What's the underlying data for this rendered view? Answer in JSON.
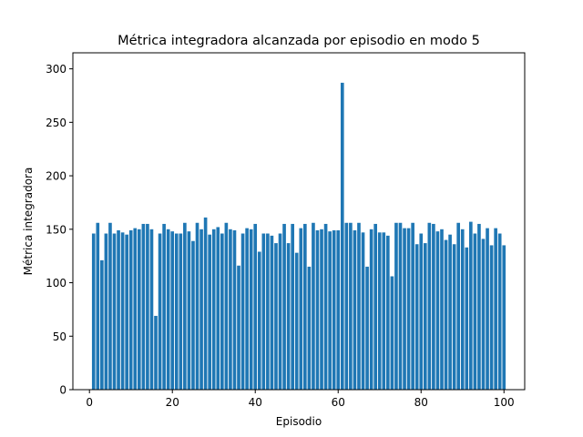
{
  "chart_data": {
    "type": "bar",
    "title": "Métrica integradora alcanzada por episodio en modo 5",
    "xlabel": "Episodio",
    "ylabel": "Métrica integradora",
    "xlim": [
      -4,
      105
    ],
    "ylim": [
      0,
      315
    ],
    "xticks": [
      0,
      20,
      40,
      60,
      80,
      100
    ],
    "yticks": [
      0,
      50,
      100,
      150,
      200,
      250,
      300
    ],
    "grid": false,
    "bar_color": "#1f77b4",
    "x": [
      1,
      2,
      3,
      4,
      5,
      6,
      7,
      8,
      9,
      10,
      11,
      12,
      13,
      14,
      15,
      16,
      17,
      18,
      19,
      20,
      21,
      22,
      23,
      24,
      25,
      26,
      27,
      28,
      29,
      30,
      31,
      32,
      33,
      34,
      35,
      36,
      37,
      38,
      39,
      40,
      41,
      42,
      43,
      44,
      45,
      46,
      47,
      48,
      49,
      50,
      51,
      52,
      53,
      54,
      55,
      56,
      57,
      58,
      59,
      60,
      61,
      62,
      63,
      64,
      65,
      66,
      67,
      68,
      69,
      70,
      71,
      72,
      73,
      74,
      75,
      76,
      77,
      78,
      79,
      80,
      81,
      82,
      83,
      84,
      85,
      86,
      87,
      88,
      89,
      90,
      91,
      92,
      93,
      94,
      95,
      96,
      97,
      98,
      99,
      100
    ],
    "values": [
      146,
      156,
      121,
      146,
      156,
      146,
      149,
      147,
      145,
      149,
      151,
      150,
      155,
      155,
      150,
      69,
      146,
      155,
      150,
      148,
      146,
      146,
      156,
      148,
      139,
      156,
      150,
      161,
      145,
      150,
      152,
      146,
      156,
      150,
      149,
      116,
      146,
      151,
      150,
      155,
      129,
      146,
      146,
      144,
      137,
      146,
      155,
      137,
      155,
      128,
      151,
      155,
      115,
      156,
      149,
      150,
      155,
      148,
      149,
      149,
      287,
      156,
      156,
      149,
      156,
      147,
      115,
      150,
      155,
      147,
      147,
      144,
      106,
      156,
      156,
      151,
      151,
      156,
      136,
      146,
      137,
      156,
      155,
      148,
      150,
      140,
      145,
      136,
      156,
      150,
      133,
      157,
      146,
      155,
      141,
      151,
      135,
      151,
      146,
      135
    ]
  }
}
